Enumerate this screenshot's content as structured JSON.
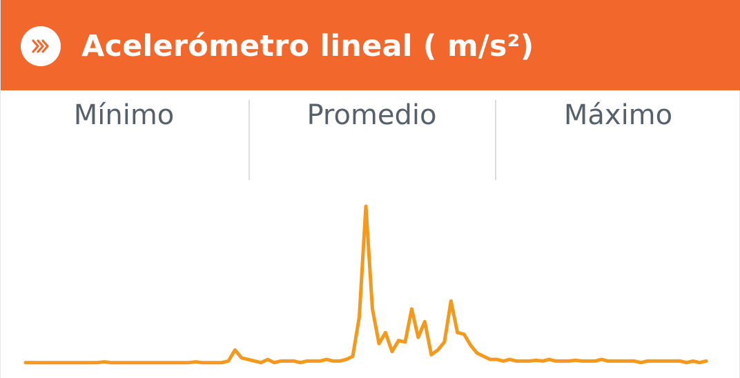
{
  "header": {
    "icon": "double-chevron-right-icon",
    "title": "Acelerómetro lineal ( m/s²)",
    "color": "#f2682c"
  },
  "stats": {
    "min_label": "Mínimo",
    "avg_label": "Promedio",
    "max_label": "Máximo",
    "min_value": "",
    "avg_value": "",
    "max_value": ""
  },
  "chart_data": {
    "type": "line",
    "color": "#f39a1e",
    "grid": false,
    "ylim": [
      0,
      1
    ],
    "series": [
      {
        "values": [
          0.01,
          0.01,
          0.01,
          0.01,
          0.01,
          0.01,
          0.01,
          0.01,
          0.01,
          0.01,
          0.01,
          0.01,
          0.015,
          0.01,
          0.01,
          0.01,
          0.01,
          0.01,
          0.01,
          0.01,
          0.01,
          0.01,
          0.01,
          0.01,
          0.01,
          0.01,
          0.015,
          0.01,
          0.01,
          0.01,
          0.01,
          0.02,
          0.09,
          0.04,
          0.03,
          0.02,
          0.01,
          0.03,
          0.01,
          0.02,
          0.02,
          0.02,
          0.01,
          0.02,
          0.02,
          0.02,
          0.03,
          0.02,
          0.02,
          0.03,
          0.05,
          0.3,
          1.0,
          0.35,
          0.13,
          0.2,
          0.08,
          0.15,
          0.14,
          0.35,
          0.17,
          0.27,
          0.06,
          0.09,
          0.14,
          0.4,
          0.2,
          0.19,
          0.12,
          0.07,
          0.05,
          0.03,
          0.03,
          0.02,
          0.03,
          0.02,
          0.02,
          0.02,
          0.025,
          0.02,
          0.03,
          0.02,
          0.02,
          0.02,
          0.025,
          0.02,
          0.02,
          0.02,
          0.03,
          0.02,
          0.02,
          0.02,
          0.02,
          0.02,
          0.01,
          0.02,
          0.02,
          0.02,
          0.02,
          0.02,
          0.02,
          0.01,
          0.02,
          0.01,
          0.02
        ]
      }
    ]
  }
}
